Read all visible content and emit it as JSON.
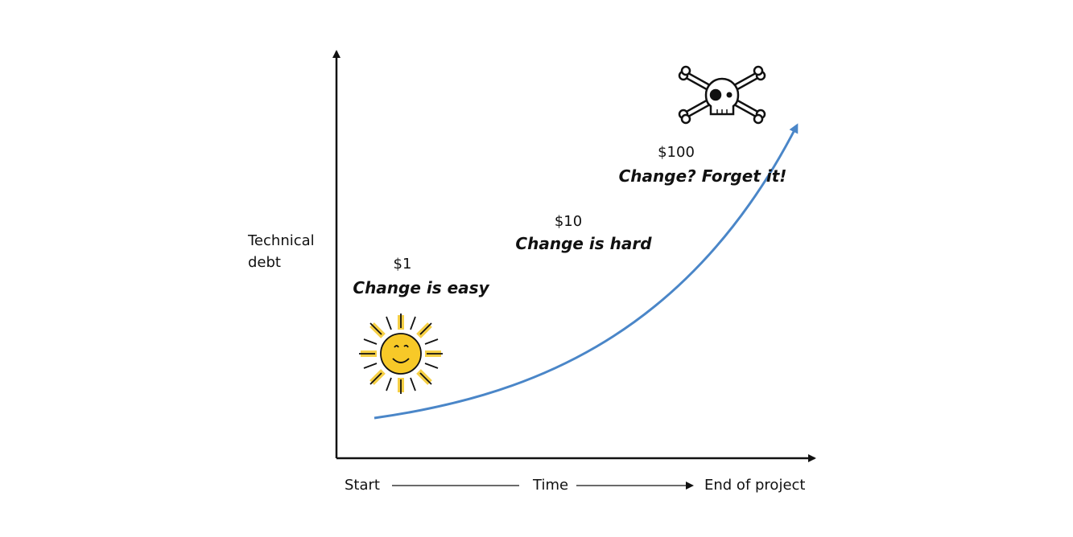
{
  "y_axis_label_lines": [
    "Technical",
    "debt"
  ],
  "x_axis": {
    "start": "Start",
    "middle": "Time",
    "end": "End of project"
  },
  "annotations": [
    {
      "cost": "$1",
      "label": "Change is easy"
    },
    {
      "cost": "$10",
      "label": "Change is hard"
    },
    {
      "cost": "$100",
      "label": "Change? Forget it!"
    }
  ]
}
